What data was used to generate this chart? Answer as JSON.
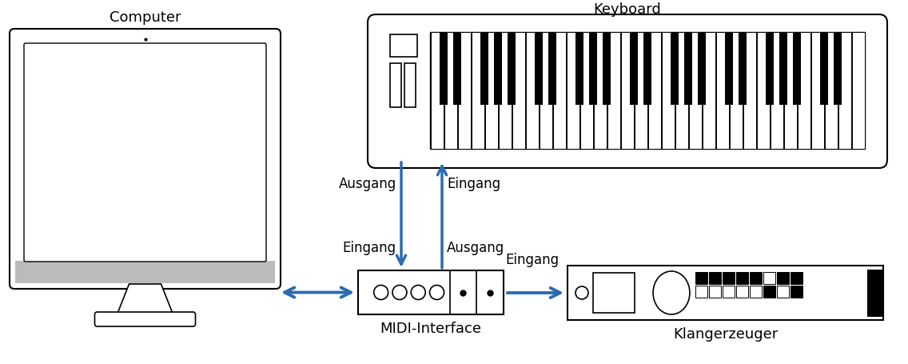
{
  "bg_color": "#ffffff",
  "arrow_color": "#2b6cb0",
  "line_color": "#000000",
  "gray_color": "#bbbbbb",
  "title_computer": "Computer",
  "title_keyboard": "Keyboard",
  "title_midi": "MIDI-Interface",
  "title_klang": "Klangerzeuger",
  "label_ausgang1": "Ausgang",
  "label_eingang1": "Eingang",
  "label_eingang2": "Eingang",
  "label_ausgang2": "Ausgang",
  "label_eingang3": "Eingang",
  "font_size_title": 13,
  "font_size_label": 12
}
